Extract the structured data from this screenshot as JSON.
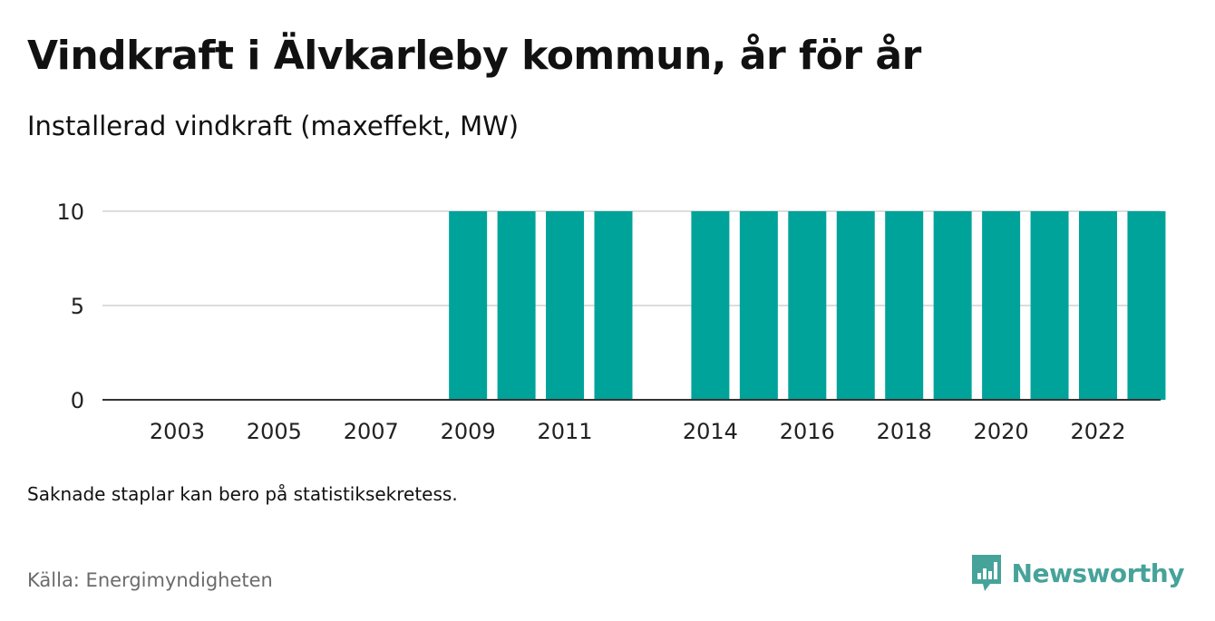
{
  "title": "Vindkraft i Älvkarleby kommun, år för år",
  "subtitle": "Installerad vindkraft (maxeffekt, MW)",
  "note": "Saknade staplar kan bero på statistiksekretess.",
  "source": "Källa: Energimyndigheten",
  "brand": {
    "name": "Newsworthy",
    "icon": "newsworthy-logo-icon",
    "color": "#46a39a"
  },
  "chart_data": {
    "type": "bar",
    "categories": [
      "2009",
      "2010",
      "2011",
      "2012",
      "2014",
      "2015",
      "2016",
      "2017",
      "2018",
      "2019",
      "2020",
      "2021",
      "2022",
      "2023"
    ],
    "values": [
      10,
      10,
      10,
      10,
      10,
      10,
      10,
      10,
      10,
      10,
      10,
      10,
      10,
      10
    ],
    "x_tick_labels": [
      "2003",
      "2005",
      "2007",
      "2009",
      "2011",
      "2014",
      "2016",
      "2018",
      "2020",
      "2022"
    ],
    "y_ticks": [
      0,
      5,
      10
    ],
    "ylim": [
      0,
      10
    ],
    "xlabel": "",
    "ylabel": "",
    "grid": true,
    "bar_color": "#00a39a"
  }
}
